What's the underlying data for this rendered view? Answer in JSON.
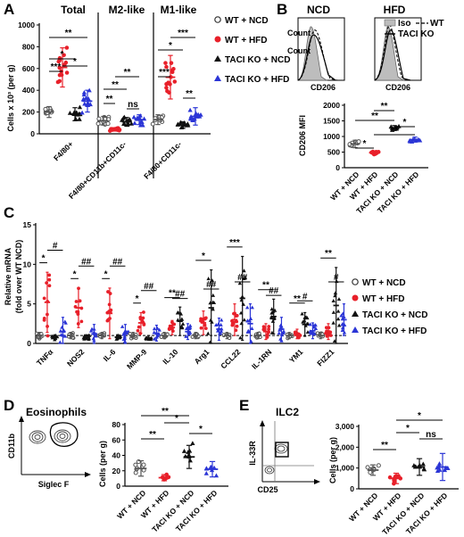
{
  "chart_data": [
    {
      "panel": "A",
      "type": "scatter",
      "ylabel": "Cells x 10³ (per g)",
      "ylim": [
        0,
        1000
      ],
      "yticks": [
        "0",
        "200",
        "400",
        "600",
        "800",
        "1000"
      ],
      "groups": [
        {
          "title": "Total",
          "category": "F4/80+",
          "means": [
            200,
            610,
            180,
            300
          ],
          "sd": [
            50,
            180,
            60,
            100
          ],
          "sig": [
            {
              "a": 0,
              "b": 1,
              "t": "***"
            },
            {
              "a": 0,
              "b": 2,
              "t": "*"
            },
            {
              "a": 1,
              "b": 3,
              "t": "*"
            },
            {
              "a": 0,
              "b": 3,
              "t": "**"
            }
          ]
        },
        {
          "title": "M2-like",
          "category": "F4/80+CD11b+CD11c-",
          "means": [
            120,
            40,
            110,
            130
          ],
          "sd": [
            40,
            15,
            40,
            45
          ],
          "sig": [
            {
              "a": 0,
              "b": 1,
              "t": "**"
            },
            {
              "a": 2,
              "b": 3,
              "t": "ns"
            },
            {
              "a": 0,
              "b": 2,
              "t": "**"
            },
            {
              "a": 1,
              "b": 3,
              "t": "**"
            }
          ]
        },
        {
          "title": "M1-like",
          "category": "F4/80+CD11c-",
          "means": [
            130,
            520,
            80,
            160
          ],
          "sd": [
            45,
            200,
            30,
            80
          ],
          "sig": [
            {
              "a": 0,
              "b": 1,
              "t": "***"
            },
            {
              "a": 2,
              "b": 3,
              "t": "**"
            },
            {
              "a": 0,
              "b": 2,
              "t": "*"
            },
            {
              "a": 1,
              "b": 3,
              "t": "***"
            }
          ]
        }
      ]
    },
    {
      "panel": "B",
      "type": "scatter",
      "ylabel": "CD206 MFI",
      "ylim": [
        0,
        2000
      ],
      "yticks": [
        "0",
        "500",
        "1000",
        "1500",
        "2000"
      ],
      "categories": [
        "WT + NCD",
        "WT + HFD",
        "TACI KO + NCD",
        "TACI KO + HFD"
      ],
      "means": [
        760,
        480,
        1270,
        900
      ],
      "sd": [
        120,
        50,
        80,
        80
      ],
      "sig": [
        {
          "a": 0,
          "b": 1,
          "t": "*"
        },
        {
          "a": 2,
          "b": 3,
          "t": "*"
        },
        {
          "a": 0,
          "b": 2,
          "t": "**"
        },
        {
          "a": 1,
          "b": 3,
          "t": "**"
        },
        {
          "a": 1,
          "b": 2,
          "t": "**"
        }
      ]
    },
    {
      "panel": "C",
      "type": "scatter",
      "ylabel": [
        "Relative mRNA",
        "(fold over WT NCD)"
      ],
      "ylim": [
        0,
        15
      ],
      "yticks": [
        "0",
        "5",
        "10",
        "15"
      ],
      "categories": [
        "TNFα",
        "NOS2",
        "IL-6",
        "MMP-9",
        "IL-10",
        "Arg1",
        "CCL22",
        "IL-1RN",
        "YM1",
        "FIZZ1"
      ],
      "means": [
        [
          1,
          5.2,
          0.8,
          1.5
        ],
        [
          1,
          4.5,
          0.8,
          1.2
        ],
        [
          1,
          3.8,
          0.8,
          1.2
        ],
        [
          1,
          2.6,
          0.7,
          1.3
        ],
        [
          1,
          2.0,
          2.8,
          1.5
        ],
        [
          1,
          2.6,
          4.5,
          1.8
        ],
        [
          1,
          3.0,
          5.7,
          2.5
        ],
        [
          1,
          1.5,
          3.4,
          1.8
        ],
        [
          1,
          1.2,
          2.4,
          1.6
        ],
        [
          1,
          1.5,
          4.8,
          3.0
        ]
      ],
      "sd": [
        [
          0.4,
          3.8,
          0.3,
          1.8
        ],
        [
          0.4,
          2.5,
          0.3,
          1.2
        ],
        [
          0.4,
          3.2,
          0.3,
          1.2
        ],
        [
          0.4,
          1.3,
          0.3,
          1.0
        ],
        [
          0.4,
          0.9,
          1.8,
          1.0
        ],
        [
          0.4,
          1.5,
          4.8,
          1.4
        ],
        [
          0.4,
          2.0,
          5.3,
          2.5
        ],
        [
          0.4,
          1.0,
          2.2,
          1.5
        ],
        [
          0.4,
          0.6,
          1.5,
          1.0
        ],
        [
          0.4,
          1.0,
          4.8,
          2.0
        ]
      ],
      "sig": [
        {
          "c": 0,
          "a": 0,
          "b": 1,
          "t": "*"
        },
        {
          "c": 0,
          "a": 1,
          "b": 3,
          "t": "#"
        },
        {
          "c": 1,
          "a": 0,
          "b": 1,
          "t": "*"
        },
        {
          "c": 1,
          "a": 1,
          "b": 3,
          "t": "##"
        },
        {
          "c": 2,
          "a": 0,
          "b": 1,
          "t": "*"
        },
        {
          "c": 2,
          "a": 1,
          "b": 3,
          "t": "##"
        },
        {
          "c": 3,
          "a": 0,
          "b": 1,
          "t": "*"
        },
        {
          "c": 3,
          "a": 1,
          "b": 3,
          "t": "##"
        },
        {
          "c": 4,
          "a": 0,
          "b": 2,
          "t": "**"
        },
        {
          "c": 4,
          "a": 1,
          "b": 3,
          "t": "##"
        },
        {
          "c": 5,
          "a": 0,
          "b": 2,
          "t": "*"
        },
        {
          "c": 5,
          "a": 1,
          "b": 3,
          "t": "##"
        },
        {
          "c": 6,
          "a": 0,
          "b": 2,
          "t": "***"
        },
        {
          "c": 6,
          "a": 1,
          "b": 3,
          "t": "##"
        },
        {
          "c": 7,
          "a": 0,
          "b": 2,
          "t": "**"
        },
        {
          "c": 7,
          "a": 1,
          "b": 3,
          "t": "##"
        },
        {
          "c": 8,
          "a": 0,
          "b": 2,
          "t": "**"
        },
        {
          "c": 8,
          "a": 1,
          "b": 3,
          "t": "#"
        },
        {
          "c": 9,
          "a": 0,
          "b": 2,
          "t": "**"
        },
        {
          "c": 9,
          "a": 1,
          "b": 3,
          "t": "#"
        }
      ]
    },
    {
      "panel": "D",
      "type": "scatter",
      "ylabel": "Cells (per g)",
      "ylim": [
        0,
        80
      ],
      "yticks": [
        "0",
        "20",
        "40",
        "60",
        "80"
      ],
      "categories": [
        "WT + NCD",
        "WT + HFD",
        "TACI KO + NCD",
        "TACI KO + HFD"
      ],
      "means": [
        23,
        11,
        38,
        22
      ],
      "sd": [
        10,
        4,
        15,
        10
      ],
      "sig": [
        {
          "a": 0,
          "b": 1,
          "t": "**"
        },
        {
          "a": 2,
          "b": 3,
          "t": "*"
        },
        {
          "a": 1,
          "b": 2,
          "t": "*"
        },
        {
          "a": 0,
          "b": 2,
          "t": "**"
        }
      ]
    },
    {
      "panel": "E",
      "type": "scatter",
      "ylabel": "Cells (per g)",
      "ylim": [
        0,
        3000
      ],
      "yticks": [
        "0",
        "1,000",
        "2,000",
        "3,000"
      ],
      "categories": [
        "WT + NCD",
        "WT + HFD",
        "TACI KO + NCD",
        "TACI KO + HFD"
      ],
      "means": [
        900,
        500,
        1050,
        1050
      ],
      "sd": [
        250,
        250,
        400,
        650
      ],
      "sig": [
        {
          "a": 0,
          "b": 1,
          "t": "**"
        },
        {
          "a": 2,
          "b": 3,
          "t": "ns"
        },
        {
          "a": 1,
          "b": 2,
          "t": "*"
        },
        {
          "a": 1,
          "b": 3,
          "t": "*"
        }
      ]
    }
  ],
  "panel_labels": {
    "A": "A",
    "B": "B",
    "C": "C",
    "D": "D",
    "E": "E"
  },
  "legend": {
    "entries": [
      "WT + NCD",
      "WT + HFD",
      "TACI KO + NCD",
      "TACI KO + HFD"
    ],
    "markers": [
      "open-circle",
      "red-circle",
      "black-triangle",
      "blue-triangle"
    ]
  },
  "group_colors": [
    "#555555",
    "#e8202a",
    "#111111",
    "#2b35d6"
  ],
  "flow_B": {
    "left_title": "NCD",
    "right_title": "HFD",
    "ylabel": "Count",
    "xlabel": "CD206",
    "legend": [
      "Iso",
      "WT",
      "TACI KO"
    ]
  },
  "flow_D": {
    "title": "Eosinophils",
    "ylabel": "CD11b",
    "xlabel": "Siglec F"
  },
  "flow_E": {
    "title": "ILC2",
    "ylabel": "IL-33R",
    "xlabel": "CD25"
  }
}
